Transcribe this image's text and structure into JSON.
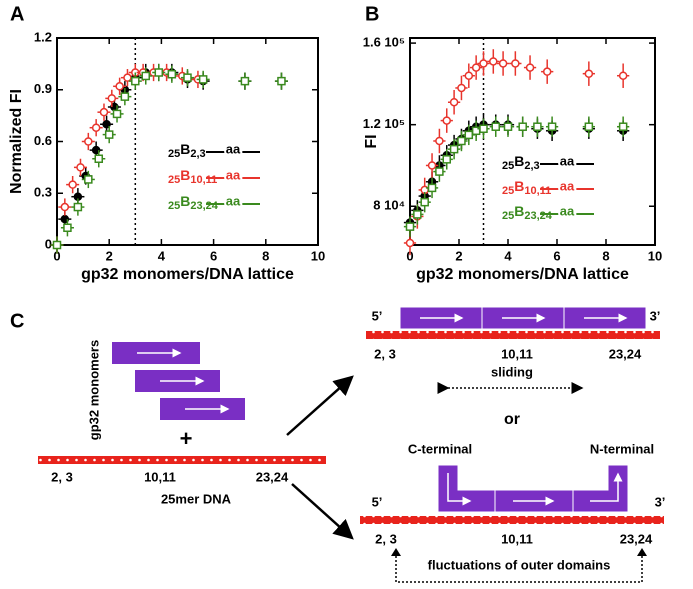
{
  "panel_labels": [
    "A",
    "B",
    "C"
  ],
  "chart_data": [
    {
      "type": "scatter",
      "xlabel": "gp32 monomers/DNA lattice",
      "ylabel": "Normalized FI",
      "xlim": [
        0,
        10
      ],
      "xticks": [
        0,
        2,
        4,
        6,
        8,
        10
      ],
      "ylim": [
        0,
        1.2
      ],
      "yticks": [
        0,
        0.3,
        0.6,
        0.9,
        1.2
      ],
      "vline": 3,
      "legend_marker_text": "aa",
      "series": [
        {
          "name": [
            "25",
            "B",
            "2,3"
          ],
          "color": "#000000",
          "marker": "circle",
          "xerr": 0.25,
          "yerr": 0.05,
          "x": [
            0,
            0.3,
            0.8,
            1.1,
            1.5,
            1.9,
            2.2,
            2.6,
            3.0,
            3.4,
            3.9,
            4.4,
            5.0,
            5.6,
            7.2,
            8.6
          ],
          "values": [
            0,
            0.15,
            0.28,
            0.4,
            0.55,
            0.7,
            0.8,
            0.9,
            0.97,
            1.0,
            1.0,
            1.0,
            0.96,
            0.95,
            0.95,
            0.95
          ]
        },
        {
          "name": [
            "25",
            "B",
            "10,11"
          ],
          "color": "#e8342c",
          "marker": "open-circle",
          "xerr": 0.25,
          "yerr": 0.05,
          "x": [
            0,
            0.3,
            0.6,
            0.9,
            1.2,
            1.5,
            1.8,
            2.1,
            2.4,
            2.7,
            3.0,
            3.3,
            3.7,
            4.2,
            4.8,
            5.4
          ],
          "values": [
            0,
            0.22,
            0.35,
            0.45,
            0.6,
            0.68,
            0.77,
            0.85,
            0.92,
            0.97,
            1.0,
            1.0,
            1.0,
            1.0,
            0.98,
            0.96
          ]
        },
        {
          "name": [
            "25",
            "B",
            "23,24"
          ],
          "color": "#3a8a1e",
          "marker": "open-square",
          "xerr": 0.25,
          "yerr": 0.05,
          "x": [
            0,
            0.4,
            0.8,
            1.2,
            1.6,
            2.0,
            2.3,
            2.6,
            3.0,
            3.4,
            3.9,
            4.4,
            5.0,
            5.6,
            7.2,
            8.6
          ],
          "values": [
            0,
            0.1,
            0.22,
            0.38,
            0.5,
            0.64,
            0.76,
            0.86,
            0.95,
            0.98,
            1.0,
            0.99,
            0.97,
            0.96,
            0.95,
            0.95
          ]
        }
      ]
    },
    {
      "type": "scatter",
      "xlabel": "gp32 monomers/DNA lattice",
      "ylabel": "FI",
      "xlim": [
        0,
        10
      ],
      "xticks": [
        0,
        2,
        4,
        6,
        8,
        10
      ],
      "ylim": [
        61000,
        162500
      ],
      "yticks": [
        {
          "value": 80000,
          "label": "8 10⁴"
        },
        {
          "value": 120000,
          "label": "1.2 10⁵"
        },
        {
          "value": 160000,
          "label": "1.6 10⁵"
        }
      ],
      "vline": 3,
      "legend_marker_text": "aa",
      "series": [
        {
          "name": [
            "25",
            "B",
            "2,3"
          ],
          "color": "#000000",
          "marker": "circle",
          "xerr": 0.25,
          "yerr": 5000,
          "x": [
            0,
            0.3,
            0.6,
            0.9,
            1.2,
            1.5,
            1.8,
            2.1,
            2.4,
            2.7,
            3.0,
            3.5,
            4.0,
            4.6,
            5.2,
            5.8,
            7.3,
            8.7
          ],
          "values": [
            72000,
            78000,
            85000,
            92000,
            100000,
            105000,
            110000,
            113000,
            117000,
            119000,
            120000,
            120000,
            120000,
            119000,
            118000,
            117000,
            118000,
            117000
          ]
        },
        {
          "name": [
            "25",
            "B",
            "10,11"
          ],
          "color": "#e8342c",
          "marker": "open-circle",
          "xerr": 0.25,
          "yerr": 6000,
          "x": [
            0,
            0.3,
            0.6,
            0.9,
            1.2,
            1.5,
            1.8,
            2.1,
            2.4,
            2.7,
            3.0,
            3.4,
            3.8,
            4.3,
            4.9,
            5.6,
            7.3,
            8.7
          ],
          "values": [
            62000,
            75000,
            88000,
            100000,
            112000,
            122000,
            131000,
            138000,
            144000,
            148000,
            150000,
            151000,
            150000,
            150000,
            148000,
            146000,
            145000,
            144000
          ]
        },
        {
          "name": [
            "25",
            "B",
            "23,24"
          ],
          "color": "#3a8a1e",
          "marker": "open-square",
          "xerr": 0.25,
          "yerr": 5000,
          "x": [
            0,
            0.3,
            0.6,
            0.9,
            1.2,
            1.5,
            1.8,
            2.1,
            2.4,
            2.7,
            3.0,
            3.5,
            4.0,
            4.6,
            5.2,
            5.8,
            7.3,
            8.7
          ],
          "values": [
            70000,
            76000,
            82000,
            89000,
            97000,
            103000,
            108000,
            112000,
            115000,
            117000,
            118000,
            119000,
            119000,
            119000,
            119000,
            119000,
            119000,
            119000
          ]
        }
      ]
    }
  ],
  "diagram": {
    "monomers_label": "gp32 monomers",
    "plus": "+",
    "site_labels": [
      "2, 3",
      "10,11",
      "23,24"
    ],
    "dna_label": "25mer DNA",
    "five_prime": "5’",
    "three_prime": "3’",
    "sliding": "sliding",
    "or": "or",
    "c_terminal": "C-terminal",
    "n_terminal": "N-terminal",
    "fluctuations": "fluctuations of outer domains"
  }
}
